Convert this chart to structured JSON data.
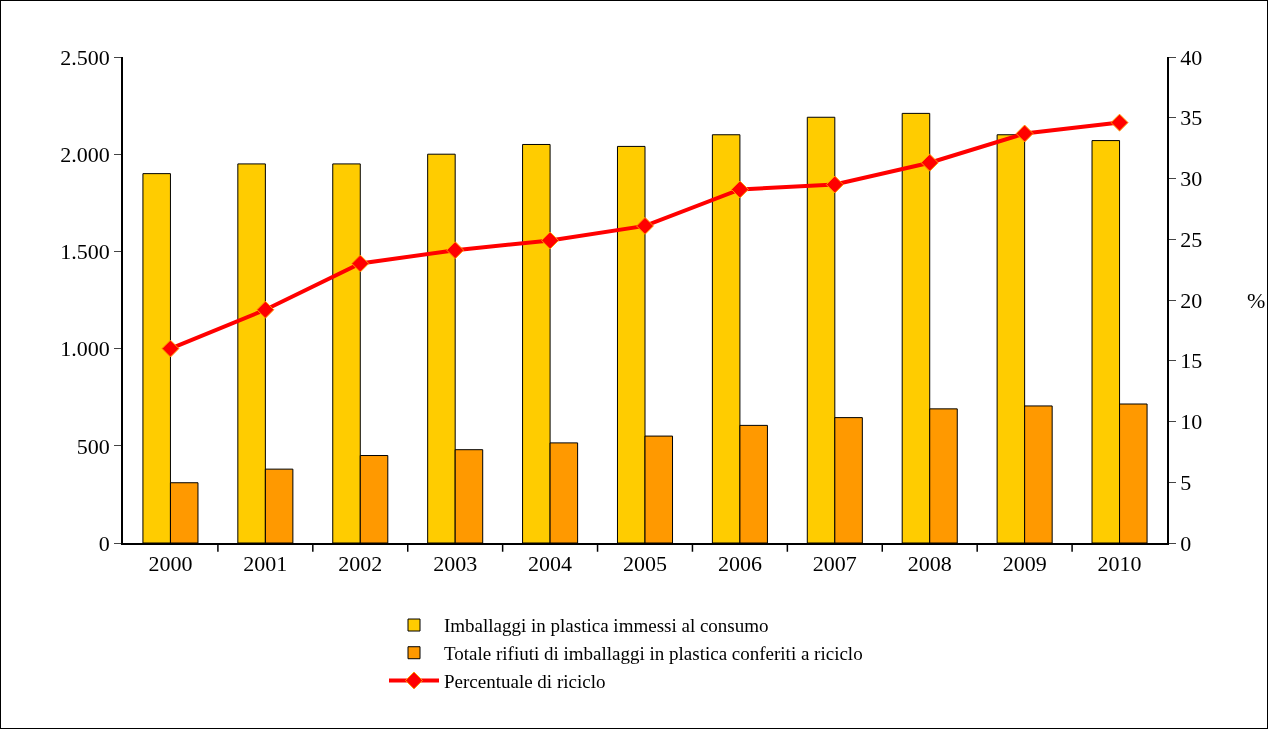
{
  "chart_data": {
    "type": "bar",
    "categories": [
      "2000",
      "2001",
      "2002",
      "2003",
      "2004",
      "2005",
      "2006",
      "2007",
      "2008",
      "2009",
      "2010"
    ],
    "series": [
      {
        "name": "Imballaggi in plastica immessi al consumo",
        "color": "#ffcc00",
        "values": [
          1900,
          1950,
          1950,
          2000,
          2050,
          2040,
          2100,
          2190,
          2210,
          2100,
          2070
        ]
      },
      {
        "name": "Totale rifiuti di imballaggi in plastica conferiti a riciclo",
        "color": "#ff9900",
        "values": [
          310,
          380,
          450,
          480,
          515,
          550,
          605,
          645,
          690,
          705,
          715
        ]
      },
      {
        "name": "Percentuale di riciclo",
        "type": "line",
        "axis": "y2",
        "color": "#ff0000",
        "marker": "diamond",
        "line_style": "solid",
        "values": [
          16,
          19.2,
          23,
          24.1,
          24.9,
          26.1,
          29.1,
          29.5,
          31.3,
          33.7,
          34.6
        ]
      }
    ],
    "ylim": [
      0,
      2500
    ],
    "yticks": [
      0,
      500,
      {
        "value": 1000,
        "label": "1.000"
      },
      {
        "value": 1500,
        "label": "1.500"
      },
      {
        "value": 2000,
        "label": "2.000"
      },
      {
        "value": 2500,
        "label": "2.500"
      }
    ],
    "y2lim": [
      0,
      40
    ],
    "y2ticks": [
      0,
      5,
      10,
      15,
      20,
      25,
      30,
      35,
      40
    ],
    "y2label": "%",
    "grid": false,
    "legend": "bottom"
  }
}
